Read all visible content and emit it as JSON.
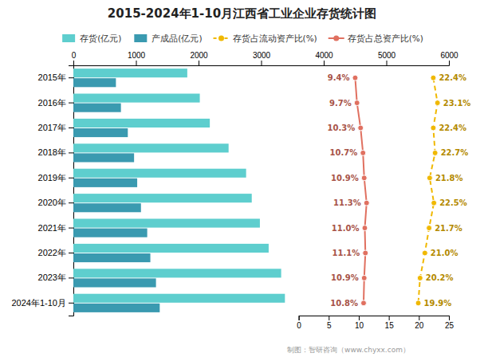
{
  "chart_data": {
    "type": "bar",
    "orientation": "horizontal",
    "title": "2015-2024年1-10月江西省工业企业存货统计图",
    "categories": [
      "2015年",
      "2016年",
      "2017年",
      "2018年",
      "2019年",
      "2020年",
      "2021年",
      "2022年",
      "2023年",
      "2024年1-10月"
    ],
    "series": [
      {
        "name": "存货(亿元)",
        "color": "#5ecece",
        "values": [
          1820,
          2020,
          2180,
          2480,
          2760,
          2850,
          2980,
          3120,
          3320,
          3380
        ]
      },
      {
        "name": "产成品(亿元)",
        "color": "#3a9ab0",
        "values": [
          680,
          760,
          870,
          970,
          1020,
          1080,
          1180,
          1230,
          1320,
          1380
        ]
      },
      {
        "name": "存货占流动资产比(%)",
        "type": "line",
        "axis": "y2",
        "color": "#f0b800",
        "line_style": "dashed",
        "marker": "circle",
        "data_labels": true,
        "values": [
          22.4,
          23.1,
          22.4,
          22.7,
          21.8,
          22.5,
          21.7,
          21.0,
          20.2,
          19.9
        ],
        "value_labels": [
          "22.4%",
          "23.1%",
          "22.4%",
          "22.7%",
          "21.8%",
          "22.5%",
          "21.7%",
          "21.0%",
          "20.2%",
          "19.9%"
        ]
      },
      {
        "name": "存货占总资产比(%)",
        "type": "line",
        "axis": "y2",
        "color": "#e07060",
        "line_style": "solid",
        "marker": "circle",
        "data_labels": true,
        "values": [
          9.4,
          9.7,
          10.3,
          10.7,
          10.9,
          11.3,
          11.0,
          11.1,
          10.9,
          10.8
        ],
        "value_labels": [
          "9.4%",
          "9.7%",
          "10.3%",
          "10.7%",
          "10.9%",
          "11.3%",
          "11.0%",
          "11.1%",
          "10.9%",
          "10.8%"
        ]
      }
    ],
    "xlim": [
      0,
      6000
    ],
    "xticks": [
      0,
      1000,
      2000,
      3000,
      4000,
      5000,
      6000
    ],
    "y2lim": [
      0,
      25
    ],
    "y2ticks": [
      0,
      5,
      10,
      15,
      20,
      25
    ],
    "grid": false,
    "legend": "top",
    "annotations": [
      "制图：智研咨询（www.chyxx.com）"
    ]
  }
}
